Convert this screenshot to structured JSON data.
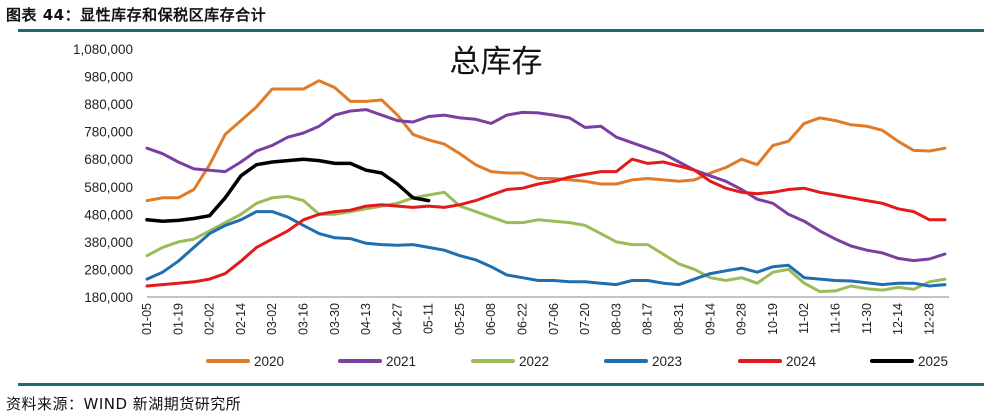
{
  "figure_title": "图表 44：显性库存和保税区库存合计",
  "source": "资料来源：WIND 新湖期货研究所",
  "chart_data": {
    "type": "line",
    "title": "总库存",
    "xlabel": "",
    "ylabel": "",
    "ylim": [
      180000,
      1080000
    ],
    "yticks": [
      "180,000",
      "280,000",
      "380,000",
      "480,000",
      "580,000",
      "680,000",
      "780,000",
      "880,000",
      "980,000",
      "1,080,000"
    ],
    "ytick_values": [
      180000,
      280000,
      380000,
      480000,
      580000,
      680000,
      780000,
      880000,
      980000,
      1080000
    ],
    "x_tick_labels": [
      "01-05",
      "01-19",
      "02-02",
      "02-14",
      "03-02",
      "03-16",
      "03-30",
      "04-13",
      "04-27",
      "05-11",
      "05-25",
      "06-08",
      "06-22",
      "07-06",
      "07-20",
      "08-03",
      "08-17",
      "08-31",
      "09-14",
      "09-28",
      "10-19",
      "11-02",
      "11-16",
      "11-30",
      "12-14",
      "12-28"
    ],
    "x_tick_positions": [
      0,
      2,
      4,
      6,
      8,
      10,
      12,
      14,
      16,
      18,
      20,
      22,
      24,
      26,
      28,
      30,
      32,
      34,
      36,
      38,
      40,
      42,
      44,
      46,
      48,
      50
    ],
    "legend_position": "bottom",
    "series": [
      {
        "name": "2020",
        "color": "#e07b28",
        "width": 3,
        "values": [
          530000,
          540000,
          540000,
          570000,
          660000,
          770000,
          820000,
          870000,
          935000,
          935000,
          935000,
          965000,
          940000,
          890000,
          890000,
          895000,
          840000,
          770000,
          750000,
          735000,
          700000,
          660000,
          635000,
          630000,
          630000,
          610000,
          610000,
          605000,
          600000,
          590000,
          590000,
          605000,
          610000,
          605000,
          600000,
          605000,
          630000,
          650000,
          680000,
          660000,
          730000,
          745000,
          810000,
          830000,
          820000,
          805000,
          800000,
          785000,
          745000,
          712000,
          710000,
          720000
        ]
      },
      {
        "name": "2021",
        "color": "#7b3fa0",
        "width": 3,
        "values": [
          720000,
          700000,
          670000,
          645000,
          640000,
          635000,
          670000,
          710000,
          730000,
          760000,
          775000,
          800000,
          840000,
          855000,
          860000,
          840000,
          820000,
          815000,
          835000,
          840000,
          830000,
          825000,
          810000,
          840000,
          850000,
          848000,
          840000,
          830000,
          795000,
          800000,
          760000,
          740000,
          720000,
          700000,
          670000,
          640000,
          620000,
          600000,
          570000,
          535000,
          520000,
          480000,
          455000,
          420000,
          390000,
          365000,
          350000,
          340000,
          320000,
          312000,
          318000,
          336000
        ]
      },
      {
        "name": "2022",
        "color": "#9bbb59",
        "width": 3,
        "values": [
          330000,
          360000,
          380000,
          390000,
          420000,
          450000,
          480000,
          520000,
          540000,
          545000,
          530000,
          480000,
          480000,
          490000,
          500000,
          510000,
          520000,
          540000,
          550000,
          560000,
          510000,
          490000,
          470000,
          450000,
          450000,
          460000,
          455000,
          450000,
          440000,
          410000,
          380000,
          370000,
          370000,
          335000,
          300000,
          280000,
          250000,
          240000,
          250000,
          230000,
          270000,
          280000,
          230000,
          200000,
          202000,
          220000,
          210000,
          205000,
          215000,
          208000,
          235000,
          245000
        ]
      },
      {
        "name": "2023",
        "color": "#1f6fb0",
        "width": 3,
        "values": [
          245000,
          270000,
          310000,
          360000,
          410000,
          440000,
          460000,
          490000,
          490000,
          470000,
          440000,
          410000,
          395000,
          392000,
          375000,
          370000,
          368000,
          370000,
          360000,
          350000,
          330000,
          315000,
          290000,
          260000,
          250000,
          240000,
          240000,
          235000,
          235000,
          230000,
          225000,
          240000,
          240000,
          230000,
          225000,
          245000,
          265000,
          275000,
          285000,
          270000,
          290000,
          295000,
          250000,
          245000,
          240000,
          238000,
          232000,
          225000,
          230000,
          230000,
          220000,
          225000
        ]
      },
      {
        "name": "2024",
        "color": "#e31a1c",
        "width": 3,
        "values": [
          220000,
          225000,
          230000,
          235000,
          245000,
          265000,
          310000,
          360000,
          390000,
          420000,
          460000,
          480000,
          490000,
          495000,
          510000,
          515000,
          510000,
          505000,
          510000,
          505000,
          515000,
          530000,
          550000,
          570000,
          575000,
          590000,
          600000,
          615000,
          625000,
          635000,
          635000,
          680000,
          665000,
          670000,
          655000,
          640000,
          600000,
          575000,
          560000,
          555000,
          560000,
          570000,
          575000,
          560000,
          550000,
          540000,
          530000,
          520000,
          500000,
          490000,
          460000,
          460000
        ]
      },
      {
        "name": "2025",
        "color": "#000000",
        "width": 3.5,
        "values": [
          460000,
          455000,
          458000,
          465000,
          475000,
          540000,
          620000,
          660000,
          670000,
          675000,
          680000,
          675000,
          665000,
          665000,
          640000,
          630000,
          590000,
          540000,
          530000
        ]
      }
    ]
  }
}
